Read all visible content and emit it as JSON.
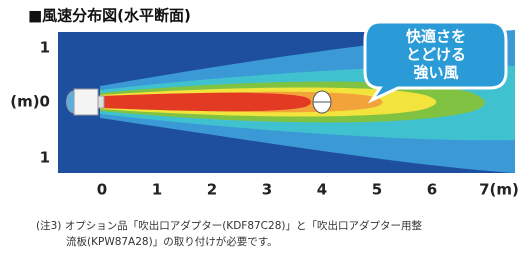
{
  "header": {
    "title": "■風速分布図(水平断面)"
  },
  "diagram": {
    "y_labels": [
      "1",
      "(m)0",
      "1"
    ],
    "x_labels": [
      "0",
      "1",
      "2",
      "3",
      "4",
      "5",
      "6",
      "7(m)"
    ],
    "callout": [
      "快適さを",
      "とどける",
      "強い風"
    ]
  },
  "note": {
    "lines": [
      "(注3) オプション品「吹出口アダプター(KDF87C28)」と「吹出口アダプター用整",
      "流板(KPW87A28)」の取り付けが必要です。"
    ]
  }
}
